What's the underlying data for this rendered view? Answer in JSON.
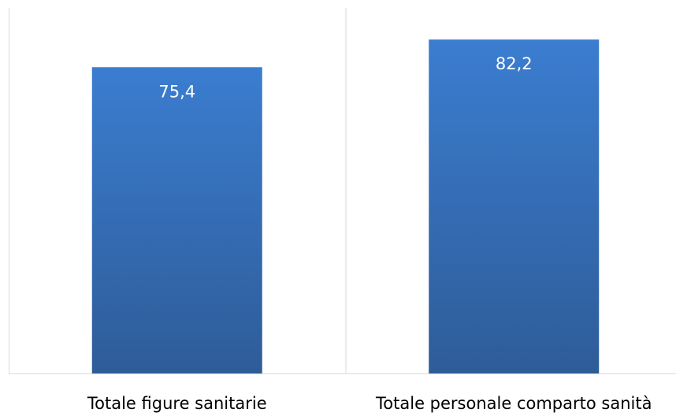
{
  "chart_data": {
    "type": "bar",
    "categories": [
      "Totale figure sanitarie",
      "Totale personale comparto sanità"
    ],
    "values": [
      75.4,
      82.2
    ],
    "data_labels": [
      "75,4",
      "82,2"
    ],
    "title": "",
    "xlabel": "",
    "ylabel": "",
    "ylim": [
      0,
      90
    ],
    "grid": false,
    "legend": "none",
    "bar_color_top": "#3B7DD0",
    "bar_color_bottom": "#2E5C98",
    "axis_color": "#D9D9D9"
  }
}
